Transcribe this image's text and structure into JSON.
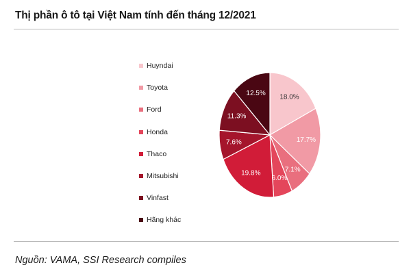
{
  "page": {
    "title": "Thị phần ô tô tại Việt Nam tính đến tháng 12/2021",
    "source": "Nguồn: VAMA, SSI Research compiles"
  },
  "chart_data": {
    "type": "pie",
    "title": "Thị phần ô tô tại Việt Nam tính đến tháng 12/2021",
    "legend_position": "left",
    "start_angle_deg": 0,
    "direction": "clockwise",
    "slices": [
      {
        "label": "Huyndai",
        "value": 18.0,
        "value_label": "18.0%",
        "color": "#f8c6cc",
        "label_color": "#333333"
      },
      {
        "label": "Toyota",
        "value": 17.7,
        "value_label": "17.7%",
        "color": "#f19aa5",
        "label_color": "#ffffff"
      },
      {
        "label": "Ford",
        "value": 7.1,
        "value_label": "7.1%",
        "color": "#e96f7e",
        "label_color": "#ffffff"
      },
      {
        "label": "Honda",
        "value": 6.0,
        "value_label": "6.0%",
        "color": "#e4465b",
        "label_color": "#ffffff"
      },
      {
        "label": "Thaco",
        "value": 19.8,
        "value_label": "19.8%",
        "color": "#d11c38",
        "label_color": "#ffffff"
      },
      {
        "label": "Mitsubishi",
        "value": 7.6,
        "value_label": "7.6%",
        "color": "#a5152c",
        "label_color": "#ffffff"
      },
      {
        "label": "Vinfast",
        "value": 11.3,
        "value_label": "11.3%",
        "color": "#7c0f21",
        "label_color": "#ffffff"
      },
      {
        "label": "Hãng khác",
        "value": 12.5,
        "value_label": "12.5%",
        "color": "#4a0713",
        "label_color": "#ffffff"
      }
    ]
  }
}
